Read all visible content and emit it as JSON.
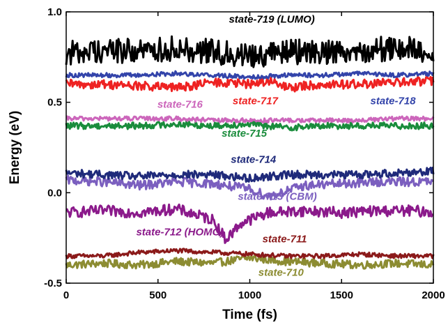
{
  "chart_data": {
    "type": "line",
    "xlabel": "Time (fs)",
    "ylabel": "Energy (eV)",
    "xlim": [
      0,
      2000
    ],
    "ylim": [
      -0.5,
      1.0
    ],
    "x_ticks": [
      0,
      500,
      1000,
      1500,
      2000
    ],
    "y_ticks": [
      -0.5,
      0.0,
      0.5,
      1.0
    ],
    "x_tick_labels": [
      "0",
      "500",
      "1000",
      "1500",
      "2000"
    ],
    "y_tick_labels": [
      "-0.5",
      "0.0",
      "0.5",
      "1.0"
    ],
    "grid": false,
    "legend": "none",
    "series": [
      {
        "name": "state-710",
        "color": "#8c8c32",
        "x": [
          0,
          200,
          400,
          600,
          800,
          1000,
          1200,
          1400,
          1600,
          1800,
          2000
        ],
        "values": [
          -0.4,
          -0.39,
          -0.4,
          -0.38,
          -0.39,
          -0.36,
          -0.38,
          -0.39,
          -0.4,
          -0.39,
          -0.4
        ]
      },
      {
        "name": "state-711",
        "color": "#8b1a1a",
        "x": [
          0,
          200,
          400,
          600,
          800,
          1000,
          1200,
          1400,
          1600,
          1800,
          2000
        ],
        "values": [
          -0.35,
          -0.35,
          -0.33,
          -0.32,
          -0.33,
          -0.34,
          -0.35,
          -0.35,
          -0.34,
          -0.35,
          -0.35
        ]
      },
      {
        "name": "state-712 (HOMO)",
        "color": "#8b1a8b",
        "x": [
          0,
          200,
          400,
          600,
          800,
          870,
          950,
          1100,
          1300,
          1500,
          1700,
          1900,
          2000
        ],
        "values": [
          -0.11,
          -0.1,
          -0.11,
          -0.09,
          -0.15,
          -0.26,
          -0.17,
          -0.11,
          -0.1,
          -0.11,
          -0.1,
          -0.1,
          -0.11
        ]
      },
      {
        "name": "state-713 (CBM)",
        "color": "#7b5fbf",
        "x": [
          0,
          200,
          400,
          600,
          800,
          1000,
          1100,
          1300,
          1500,
          1700,
          1900,
          2000
        ],
        "values": [
          0.07,
          0.06,
          0.04,
          0.06,
          0.05,
          0.02,
          -0.02,
          0.04,
          0.05,
          0.06,
          0.06,
          0.06
        ]
      },
      {
        "name": "state-714",
        "color": "#1f2a7a",
        "x": [
          0,
          200,
          400,
          600,
          800,
          1000,
          1200,
          1400,
          1600,
          1800,
          2000
        ],
        "values": [
          0.11,
          0.1,
          0.09,
          0.1,
          0.1,
          0.08,
          0.1,
          0.1,
          0.1,
          0.11,
          0.12
        ]
      },
      {
        "name": "state-715",
        "color": "#1a8c3c",
        "x": [
          0,
          200,
          400,
          600,
          800,
          1000,
          1200,
          1400,
          1600,
          1800,
          2000
        ],
        "values": [
          0.37,
          0.37,
          0.37,
          0.38,
          0.37,
          0.38,
          0.36,
          0.37,
          0.37,
          0.37,
          0.37
        ]
      },
      {
        "name": "state-716",
        "color": "#cc66bb",
        "x": [
          0,
          200,
          400,
          600,
          800,
          1000,
          1200,
          1400,
          1600,
          1800,
          2000
        ],
        "values": [
          0.41,
          0.41,
          0.41,
          0.41,
          0.4,
          0.4,
          0.4,
          0.4,
          0.4,
          0.41,
          0.41
        ]
      },
      {
        "name": "state-717",
        "color": "#ee2222",
        "x": [
          0,
          200,
          400,
          600,
          800,
          1000,
          1100,
          1200,
          1400,
          1600,
          1800,
          2000
        ],
        "values": [
          0.6,
          0.6,
          0.59,
          0.58,
          0.61,
          0.6,
          0.62,
          0.58,
          0.6,
          0.6,
          0.61,
          0.62
        ]
      },
      {
        "name": "state-718",
        "color": "#3344aa",
        "x": [
          0,
          200,
          400,
          600,
          800,
          1000,
          1200,
          1400,
          1600,
          1800,
          2000
        ],
        "values": [
          0.65,
          0.65,
          0.65,
          0.66,
          0.65,
          0.64,
          0.65,
          0.65,
          0.66,
          0.65,
          0.66
        ]
      },
      {
        "name": "state-719 (LUMO)",
        "color": "#000000",
        "x": [
          0,
          200,
          400,
          600,
          800,
          1000,
          1200,
          1400,
          1600,
          1800,
          2000
        ],
        "values": [
          0.77,
          0.79,
          0.78,
          0.8,
          0.78,
          0.76,
          0.78,
          0.78,
          0.79,
          0.8,
          0.78
        ]
      }
    ],
    "annotations": [
      {
        "text": "state-719 (LUMO)",
        "color": "#000000",
        "at": [
          1120,
          0.94
        ]
      },
      {
        "text": "state-716",
        "color": "#cc66bb",
        "at": [
          620,
          0.47
        ]
      },
      {
        "text": "state-717",
        "color": "#ee2222",
        "at": [
          1030,
          0.49
        ]
      },
      {
        "text": "state-718",
        "color": "#3344aa",
        "at": [
          1780,
          0.49
        ]
      },
      {
        "text": "state-715",
        "color": "#1a8c3c",
        "at": [
          970,
          0.31
        ]
      },
      {
        "text": "state-714",
        "color": "#1f2a7a",
        "at": [
          1020,
          0.165
        ]
      },
      {
        "text": "state-713 (CBM)",
        "color": "#7b5fbf",
        "at": [
          1150,
          -0.04
        ]
      },
      {
        "text": "state-712 (HOMO)",
        "color": "#8b1a8b",
        "at": [
          620,
          -0.235
        ]
      },
      {
        "text": "state-711",
        "color": "#8b1a1a",
        "at": [
          1190,
          -0.275
        ]
      },
      {
        "text": "state-710",
        "color": "#8c8c32",
        "at": [
          1170,
          -0.46
        ]
      }
    ]
  }
}
